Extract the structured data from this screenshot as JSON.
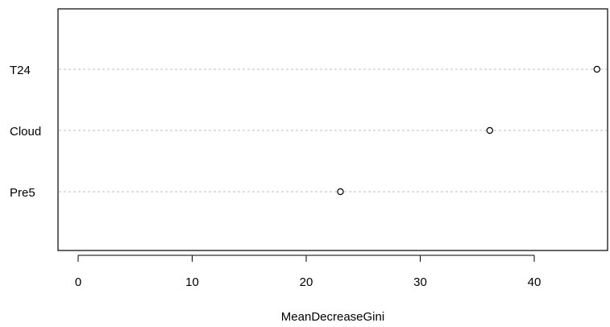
{
  "chart_data": {
    "type": "scatter",
    "subtype": "dotchart",
    "title": "",
    "xlabel": "MeanDecreaseGini",
    "ylabel": "",
    "categories": [
      "T24",
      "Cloud",
      "Pre5"
    ],
    "values": [
      45.5,
      36.1,
      23.0
    ],
    "xlim": [
      -1.8,
      46.2
    ],
    "xticks": [
      0,
      10,
      20,
      30,
      40
    ],
    "grid": "horizontal dashed lines per category",
    "legend": "none",
    "colors": {
      "point_stroke": "#000000",
      "grid": "#bfbfbf",
      "axis": "#000000"
    }
  }
}
